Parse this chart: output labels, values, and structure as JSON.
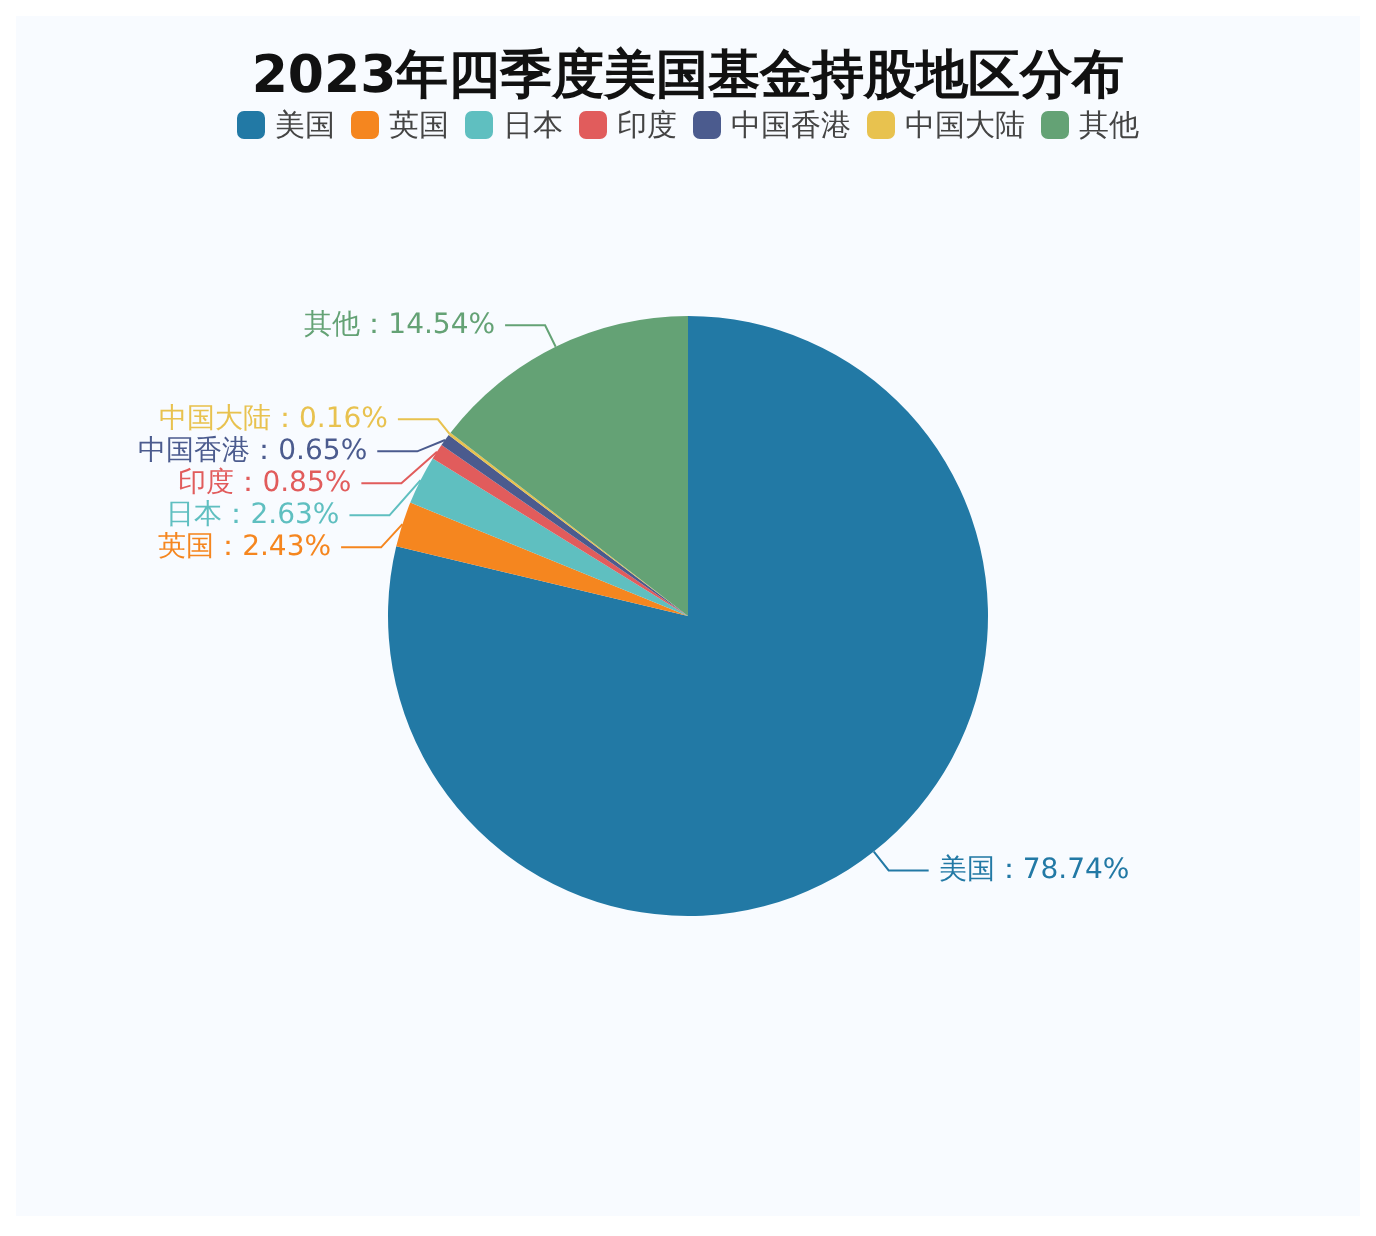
{
  "chart_data": {
    "type": "pie",
    "title": "2023年四季度美国基金持股地区分布",
    "categories": [
      "美国",
      "英国",
      "日本",
      "印度",
      "中国香港",
      "中国大陆",
      "其他"
    ],
    "values": [
      78.74,
      2.43,
      2.63,
      0.85,
      0.65,
      0.16,
      14.54
    ],
    "value_labels": [
      "美国：78.74%",
      "英国：2.43%",
      "日本：2.63%",
      "印度：0.85%",
      "中国香港：0.65%",
      "中国大陆：0.16%",
      "其他：14.54%"
    ],
    "colors": [
      "#2279a5",
      "#f5861f",
      "#5fbfc0",
      "#e15c5c",
      "#4b5b8e",
      "#e8c24f",
      "#64a275"
    ],
    "legend": "top"
  }
}
